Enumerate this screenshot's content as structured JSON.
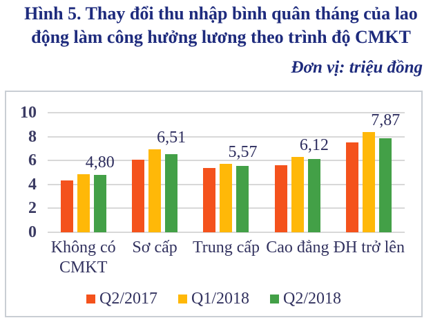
{
  "figure": {
    "title_lines": [
      "Hình 5. Thay đổi thu nhập bình quân tháng của lao",
      "động làm công hưởng lương theo trình độ CMKT"
    ],
    "unit_note": "Đơn vị: triệu đồng"
  },
  "colors": {
    "title_text": "#1e2b7d",
    "axis_text": "#3b3b63",
    "category_text": "#32325f",
    "data_label_text": "#2d2d5e",
    "gridline": "#d8d8d8",
    "box_border": "#c9ced4",
    "series_q2_2017": "#f4521c",
    "series_q1_2018": "#ffb808",
    "series_q2_2018": "#43a047"
  },
  "chart_data": {
    "type": "bar",
    "categories": [
      "Không có\nCMKT",
      "Sơ cấp",
      "Trung cấp",
      "Cao đẳng",
      "ĐH trở lên"
    ],
    "series": [
      {
        "name": "Q2/2017",
        "color": "#f4521c",
        "values": [
          4.35,
          6.05,
          5.4,
          5.62,
          7.5
        ]
      },
      {
        "name": "Q1/2018",
        "color": "#ffb808",
        "values": [
          4.87,
          6.95,
          5.7,
          6.3,
          8.4
        ]
      },
      {
        "name": "Q2/2018",
        "color": "#43a047",
        "values": [
          4.8,
          6.51,
          5.57,
          6.12,
          7.87
        ]
      }
    ],
    "data_labels": {
      "series": "Q2/2018",
      "texts": [
        "4,80",
        "6,51",
        "5,57",
        "6,12",
        "7,87"
      ]
    },
    "y_ticks": [
      0,
      2,
      4,
      6,
      8,
      10
    ],
    "ylim": [
      0,
      10
    ],
    "grid": true,
    "legend_position": "bottom"
  }
}
